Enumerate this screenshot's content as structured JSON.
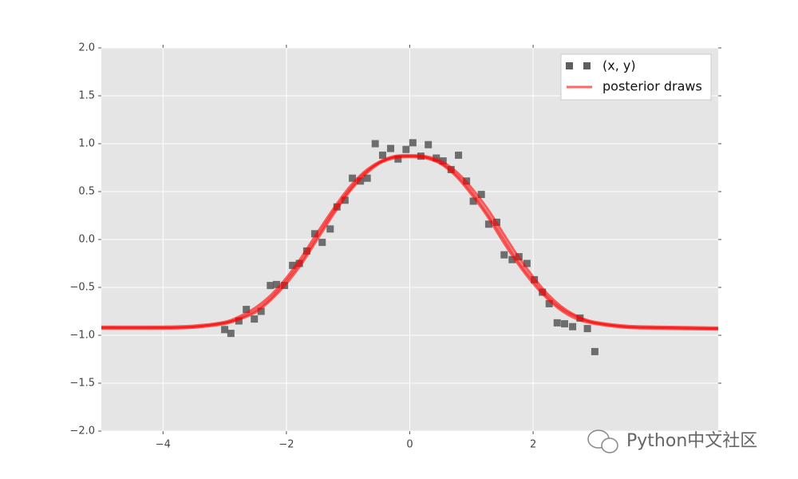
{
  "chart_data": {
    "type": "scatter-lines",
    "xlim": [
      -5,
      5
    ],
    "ylim": [
      -2,
      2
    ],
    "xticks": [
      {
        "value": -4,
        "label": "−4"
      },
      {
        "value": -2,
        "label": "−2"
      },
      0,
      2
    ],
    "yticks": [
      {
        "value": -2,
        "label": "−2.0"
      },
      {
        "value": -1.5,
        "label": "−1.5"
      },
      {
        "value": -1,
        "label": "−1.0"
      },
      {
        "value": -0.5,
        "label": "−0.5"
      },
      {
        "value": 0,
        "label": "0.0"
      },
      {
        "value": 0.5,
        "label": "0.5"
      },
      {
        "value": 1,
        "label": "1.0"
      },
      {
        "value": 1.5,
        "label": "1.5"
      },
      {
        "value": 2,
        "label": "2.0"
      }
    ],
    "grid": true,
    "legend": "upper right",
    "scatter": {
      "name": "(x, y)",
      "color": "#5f5f5f",
      "x": [
        -3.0,
        -2.9,
        -2.77,
        -2.65,
        -2.52,
        -2.41,
        -2.26,
        -2.16,
        -2.03,
        -1.9,
        -1.79,
        -1.67,
        -1.54,
        -1.42,
        -1.29,
        -1.18,
        -1.05,
        -0.93,
        -0.8,
        -0.69,
        -0.56,
        -0.44,
        -0.31,
        -0.19,
        -0.06,
        0.05,
        0.18,
        0.3,
        0.43,
        0.54,
        0.67,
        0.79,
        0.92,
        1.03,
        1.16,
        1.28,
        1.41,
        1.53,
        1.66,
        1.77,
        1.9,
        2.02,
        2.15,
        2.26,
        2.39,
        2.51,
        2.64,
        2.76,
        2.88,
        3.0
      ],
      "y": [
        -0.94,
        -0.98,
        -0.85,
        -0.73,
        -0.83,
        -0.75,
        -0.48,
        -0.47,
        -0.48,
        -0.27,
        -0.25,
        -0.12,
        0.06,
        -0.03,
        0.11,
        0.34,
        0.41,
        0.64,
        0.61,
        0.64,
        1.0,
        0.88,
        0.95,
        0.84,
        0.94,
        1.01,
        0.87,
        0.99,
        0.85,
        0.82,
        0.73,
        0.88,
        0.61,
        0.4,
        0.47,
        0.16,
        0.18,
        -0.16,
        -0.21,
        -0.18,
        -0.25,
        -0.42,
        -0.55,
        -0.67,
        -0.87,
        -0.88,
        -0.91,
        -0.82,
        -0.93,
        -1.17
      ]
    },
    "lines": {
      "name": "posterior draws",
      "color": "#ff0000",
      "x": [
        -5,
        -4,
        -3.5,
        -3,
        -2.75,
        -2.5,
        -2.25,
        -2,
        -1.75,
        -1.5,
        -1.25,
        -1,
        -0.75,
        -0.5,
        -0.25,
        0,
        0.25,
        0.5,
        0.75,
        1,
        1.25,
        1.5,
        1.75,
        2,
        2.25,
        2.5,
        2.75,
        3,
        3.5,
        4,
        5
      ],
      "draws": [
        [
          -0.92,
          -0.92,
          -0.91,
          -0.87,
          -0.82,
          -0.74,
          -0.61,
          -0.43,
          -0.22,
          0.03,
          0.28,
          0.5,
          0.68,
          0.8,
          0.86,
          0.87,
          0.86,
          0.8,
          0.68,
          0.5,
          0.28,
          0.03,
          -0.22,
          -0.43,
          -0.61,
          -0.74,
          -0.82,
          -0.87,
          -0.91,
          -0.92,
          -0.93
        ],
        [
          -0.91,
          -0.91,
          -0.9,
          -0.86,
          -0.8,
          -0.71,
          -0.58,
          -0.4,
          -0.18,
          0.07,
          0.31,
          0.53,
          0.7,
          0.81,
          0.87,
          0.88,
          0.87,
          0.82,
          0.71,
          0.54,
          0.33,
          0.08,
          -0.17,
          -0.39,
          -0.58,
          -0.72,
          -0.81,
          -0.86,
          -0.9,
          -0.91,
          -0.92
        ],
        [
          -0.93,
          -0.93,
          -0.92,
          -0.88,
          -0.83,
          -0.76,
          -0.63,
          -0.46,
          -0.25,
          0.0,
          0.25,
          0.48,
          0.66,
          0.79,
          0.85,
          0.86,
          0.85,
          0.79,
          0.66,
          0.47,
          0.25,
          -0.01,
          -0.25,
          -0.46,
          -0.63,
          -0.76,
          -0.84,
          -0.88,
          -0.92,
          -0.93,
          -0.94
        ]
      ]
    },
    "watermark": "Python中文社区"
  }
}
